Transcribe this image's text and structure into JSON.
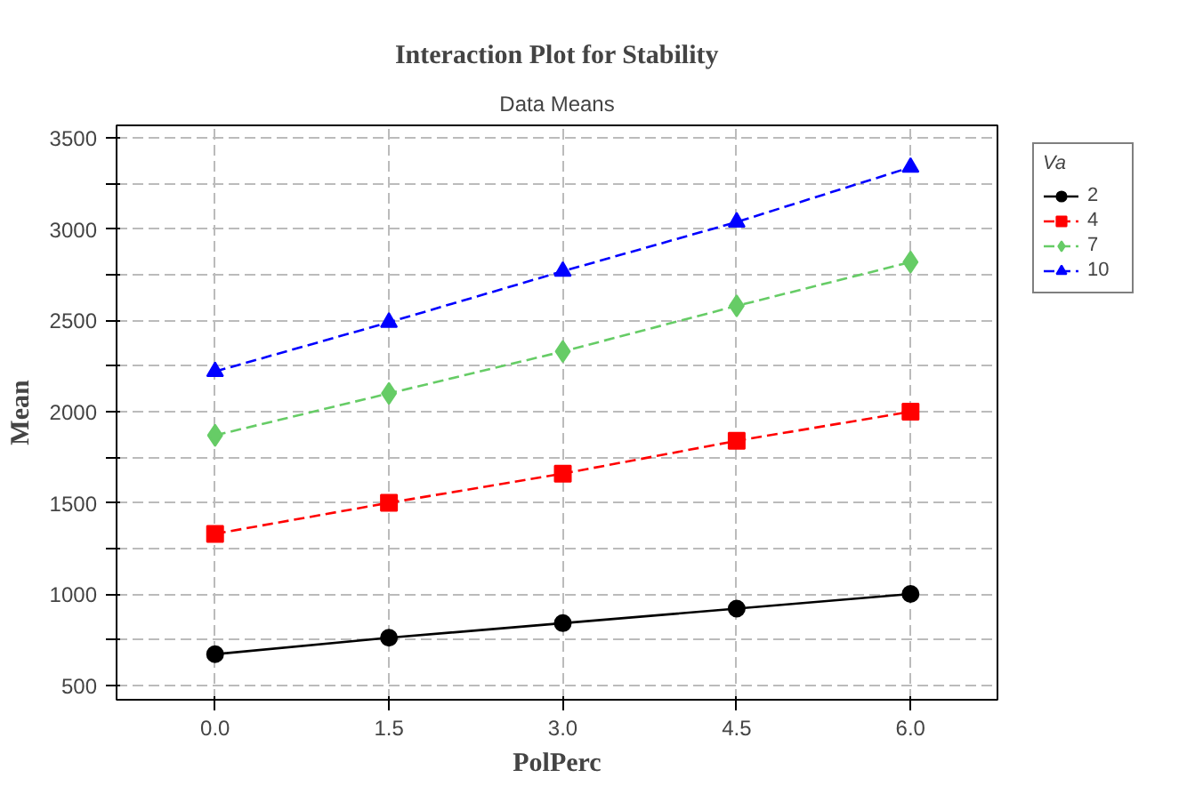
{
  "chart_data": {
    "type": "line",
    "title": "Interaction Plot for Stability",
    "subtitle": "Data Means",
    "xlabel": "PolPerc",
    "ylabel": "Mean",
    "legend_title": "Va",
    "x": [
      0.0,
      1.5,
      3.0,
      4.5,
      6.0
    ],
    "series": [
      {
        "name": "2",
        "color": "#000000",
        "marker": "circle",
        "line_style": "solid",
        "values": [
          670,
          760,
          840,
          920,
          1000
        ]
      },
      {
        "name": "4",
        "color": "#ff0000",
        "marker": "square",
        "line_style": "dashed",
        "values": [
          1330,
          1500,
          1660,
          1840,
          2000
        ]
      },
      {
        "name": "7",
        "color": "#66cc66",
        "marker": "diamond",
        "line_style": "dashed",
        "values": [
          1870,
          2100,
          2330,
          2580,
          2820
        ]
      },
      {
        "name": "10",
        "color": "#0000ff",
        "marker": "triangle",
        "line_style": "dashed",
        "values": [
          2220,
          2490,
          2770,
          3040,
          3340
        ]
      }
    ],
    "xlim": [
      -0.85,
      6.75
    ],
    "ylim": [
      420,
      3570
    ],
    "xticks": [
      {
        "value": 0,
        "label": "0.0"
      },
      {
        "value": 1.5,
        "label": "1.5"
      },
      {
        "value": 3,
        "label": "3.0"
      },
      {
        "value": 4.5,
        "label": "4.5"
      },
      {
        "value": 6,
        "label": "6.0"
      }
    ],
    "yticks": [
      500,
      {
        "value": 750,
        "label": null
      },
      1000,
      {
        "value": 1250,
        "label": null
      },
      1500,
      {
        "value": 1750,
        "label": null
      },
      2000,
      {
        "value": 2250,
        "label": null
      },
      2500,
      {
        "value": 2750,
        "label": null
      },
      3000,
      {
        "value": 3250,
        "label": null
      },
      3500
    ],
    "grid": true,
    "legend": "right"
  }
}
